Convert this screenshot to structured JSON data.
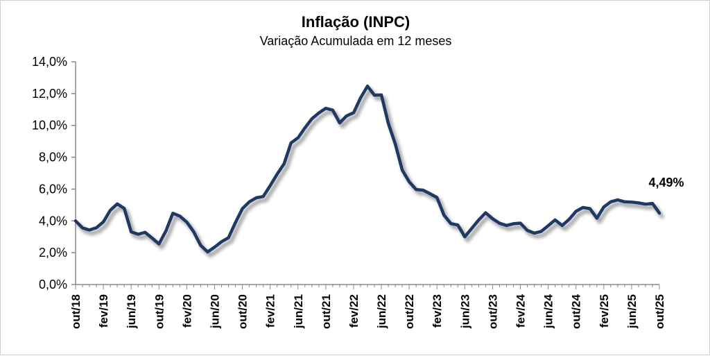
{
  "chart_data": {
    "type": "line",
    "title": "Inflação (INPC)",
    "subtitle": "Variação Acumulada em 12 meses",
    "xlabel": "",
    "ylabel": "",
    "ylim": [
      0,
      14
    ],
    "y_ticks": [
      "0,0%",
      "2,0%",
      "4,0%",
      "6,0%",
      "8,0%",
      "10,0%",
      "12,0%",
      "14,0%"
    ],
    "x_tick_labels": [
      "out/18",
      "fev/19",
      "jun/19",
      "out/19",
      "fev/20",
      "jun/20",
      "out/20",
      "fev/21",
      "jun/21",
      "out/21",
      "fev/22",
      "jun/22",
      "out/22",
      "fev/23",
      "jun/23",
      "out/23",
      "fev/24",
      "jun/24",
      "out/24",
      "fev/25",
      "jun/25",
      "out/25"
    ],
    "x": [
      "out/18",
      "nov/18",
      "dez/18",
      "jan/19",
      "fev/19",
      "mar/19",
      "abr/19",
      "mai/19",
      "jun/19",
      "jul/19",
      "ago/19",
      "set/19",
      "out/19",
      "nov/19",
      "dez/19",
      "jan/20",
      "fev/20",
      "mar/20",
      "abr/20",
      "mai/20",
      "jun/20",
      "jul/20",
      "ago/20",
      "set/20",
      "out/20",
      "nov/20",
      "dez/20",
      "jan/21",
      "fev/21",
      "mar/21",
      "abr/21",
      "mai/21",
      "jun/21",
      "jul/21",
      "ago/21",
      "set/21",
      "out/21",
      "nov/21",
      "dez/21",
      "jan/22",
      "fev/22",
      "mar/22",
      "abr/22",
      "mai/22",
      "jun/22",
      "jul/22",
      "ago/22",
      "set/22",
      "out/22",
      "nov/22",
      "dez/22",
      "jan/23",
      "fev/23",
      "mar/23",
      "abr/23",
      "mai/23",
      "jun/23",
      "jul/23",
      "ago/23",
      "set/23",
      "out/23",
      "nov/23",
      "dez/23",
      "jan/24",
      "fev/24",
      "mar/24",
      "abr/24",
      "mai/24",
      "jun/24",
      "jul/24",
      "ago/24",
      "set/24",
      "out/24",
      "nov/24",
      "dez/24",
      "jan/25",
      "fev/25",
      "mar/25",
      "abr/25",
      "mai/25",
      "jun/25",
      "jul/25",
      "ago/25",
      "set/25",
      "out/25"
    ],
    "series": [
      {
        "values": [
          4.0,
          3.56,
          3.43,
          3.57,
          3.94,
          4.67,
          5.07,
          4.78,
          3.31,
          3.16,
          3.28,
          2.92,
          2.55,
          3.37,
          4.48,
          4.3,
          3.92,
          3.31,
          2.46,
          2.05,
          2.35,
          2.69,
          2.94,
          3.89,
          4.77,
          5.2,
          5.45,
          5.53,
          6.22,
          6.94,
          7.59,
          8.9,
          9.22,
          9.85,
          10.42,
          10.78,
          11.08,
          10.96,
          10.16,
          10.6,
          10.8,
          11.73,
          12.47,
          11.9,
          11.92,
          10.12,
          8.83,
          7.19,
          6.46,
          5.97,
          5.93,
          5.71,
          5.47,
          4.36,
          3.83,
          3.74,
          3.0,
          3.53,
          4.06,
          4.51,
          4.14,
          3.85,
          3.71,
          3.82,
          3.86,
          3.4,
          3.23,
          3.34,
          3.7,
          4.06,
          3.71,
          4.09,
          4.6,
          4.84,
          4.77,
          4.17,
          4.87,
          5.2,
          5.32,
          5.2,
          5.18,
          5.13,
          5.05,
          5.1,
          4.49
        ]
      }
    ],
    "annotation": {
      "text": "4,49%"
    },
    "colors": {
      "line": "#1f3864"
    },
    "grid": false,
    "legend": "none"
  }
}
